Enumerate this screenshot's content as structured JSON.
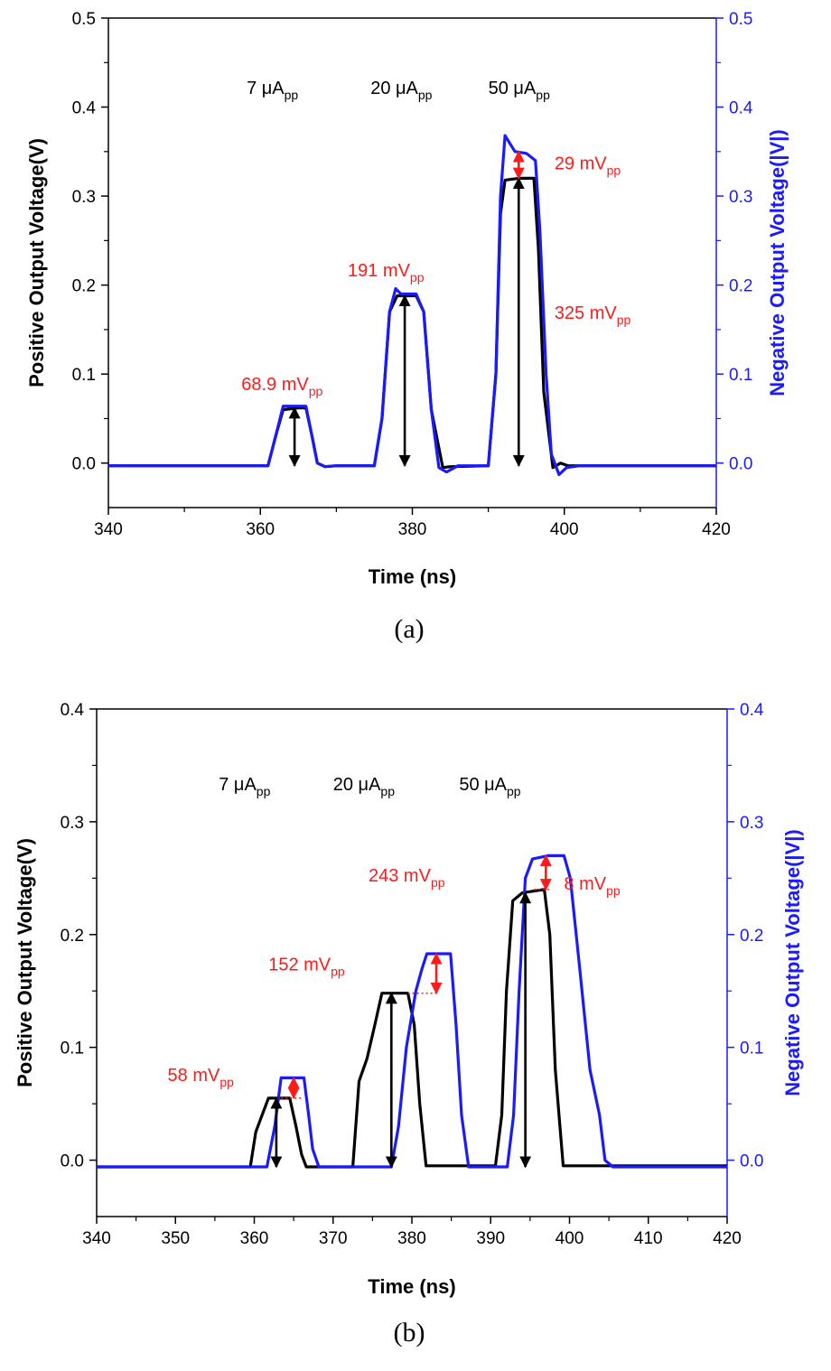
{
  "chart_data": [
    {
      "type": "line",
      "caption": "(a)",
      "xlabel": "Time (ns)",
      "ylabel_left": "Positive Output Voltage(V)",
      "ylabel_right": "Negative Output Voltage(|V|)",
      "xlim": [
        340,
        420
      ],
      "ylim": [
        -0.05,
        0.5
      ],
      "xticks": [
        340,
        360,
        380,
        400,
        420
      ],
      "xtick_labels": [
        "340",
        "360",
        "380",
        "400",
        "420"
      ],
      "yticks": [
        0.0,
        0.1,
        0.2,
        0.3,
        0.4,
        0.5
      ],
      "ytick_labels": [
        "0.0",
        "0.1",
        "0.2",
        "0.3",
        "0.4",
        "0.5"
      ],
      "colors": {
        "positive": "#000000",
        "negative": "#1a1aff",
        "annotation": "#ff1a1a"
      },
      "series": [
        {
          "axis": "left",
          "color": "#000000",
          "x": [
            340,
            361,
            362,
            363,
            365,
            366,
            366.8,
            367.5,
            368.5,
            370,
            375,
            376,
            377,
            378,
            380.5,
            381.5,
            382.5,
            384,
            385,
            390,
            391,
            391.6,
            392.2,
            394,
            396,
            396.6,
            397.3,
            398.5,
            399.5,
            400.5,
            402,
            420
          ],
          "y": [
            -0.003,
            -0.003,
            0.03,
            0.06,
            0.062,
            0.062,
            0.03,
            0.0,
            -0.004,
            -0.003,
            -0.003,
            0.05,
            0.17,
            0.188,
            0.188,
            0.17,
            0.06,
            -0.005,
            -0.004,
            -0.003,
            0.1,
            0.28,
            0.318,
            0.32,
            0.32,
            0.24,
            0.08,
            -0.005,
            0.0,
            -0.003,
            -0.003,
            -0.003
          ]
        },
        {
          "axis": "right",
          "color": "#1a1aff",
          "x": [
            340,
            361,
            362,
            363,
            365,
            366,
            366.8,
            367.5,
            368.5,
            370,
            375,
            376,
            377,
            377.8,
            378.5,
            380.5,
            381.5,
            382.5,
            383.5,
            384.5,
            386,
            390,
            391,
            391.6,
            392.2,
            393.5,
            395,
            396.2,
            396.8,
            397.6,
            398.3,
            399.3,
            400.3,
            402,
            420
          ],
          "y": [
            -0.003,
            -0.003,
            0.03,
            0.064,
            0.064,
            0.064,
            0.03,
            0.0,
            -0.004,
            -0.003,
            -0.003,
            0.05,
            0.17,
            0.196,
            0.19,
            0.19,
            0.17,
            0.06,
            -0.005,
            -0.01,
            -0.003,
            -0.003,
            0.1,
            0.3,
            0.368,
            0.35,
            0.348,
            0.34,
            0.26,
            0.1,
            0.01,
            -0.013,
            -0.005,
            -0.003,
            -0.003
          ]
        }
      ],
      "annotations": [
        {
          "text": "7 μA",
          "sub": "pp",
          "x": 358.2,
          "y": 0.415,
          "color": "#000000"
        },
        {
          "text": "20 μA",
          "sub": "pp",
          "x": 374.5,
          "y": 0.415,
          "color": "#000000"
        },
        {
          "text": "50 μA",
          "sub": "pp",
          "x": 390,
          "y": 0.415,
          "color": "#000000"
        },
        {
          "text": "68.9 mV",
          "sub": "pp",
          "x": 357.5,
          "y": 0.082,
          "color": "#ff1a1a"
        },
        {
          "text": "191 mV",
          "sub": "pp",
          "x": 371.5,
          "y": 0.21,
          "color": "#ff1a1a"
        },
        {
          "text": "29 mV",
          "sub": "pp",
          "x": 398.7,
          "y": 0.33,
          "color": "#ff1a1a"
        },
        {
          "text": "325 mV",
          "sub": "pp",
          "x": 398.7,
          "y": 0.162,
          "color": "#ff1a1a"
        }
      ],
      "arrows": [
        {
          "x": 364.5,
          "y1": 0.062,
          "y2": -0.003,
          "color": "#000000"
        },
        {
          "x": 379,
          "y1": 0.188,
          "y2": -0.003,
          "color": "#000000"
        },
        {
          "x": 394,
          "y1": 0.32,
          "y2": -0.003,
          "color": "#000000"
        },
        {
          "x": 394,
          "y1": 0.35,
          "y2": 0.32,
          "color": "#ff1a1a"
        }
      ]
    },
    {
      "type": "line",
      "caption": "(b)",
      "xlabel": "Time (ns)",
      "ylabel_left": "Positive Output Voltage(V)",
      "ylabel_right": "Negative Output Voltage(|V|)",
      "xlim": [
        340,
        420
      ],
      "ylim": [
        -0.05,
        0.4
      ],
      "xticks": [
        340,
        350,
        360,
        370,
        380,
        390,
        400,
        410,
        420
      ],
      "xtick_labels": [
        "340",
        "350",
        "360",
        "370",
        "380",
        "390",
        "400",
        "410",
        "420"
      ],
      "yticks": [
        0.0,
        0.1,
        0.2,
        0.3,
        0.4
      ],
      "ytick_labels": [
        "0.0",
        "0.1",
        "0.2",
        "0.3",
        "0.4"
      ],
      "colors": {
        "positive": "#000000",
        "negative": "#1a1aff",
        "annotation": "#ff1a1a"
      },
      "series": [
        {
          "axis": "left",
          "color": "#000000",
          "x": [
            340,
            359.5,
            360.2,
            361,
            361.8,
            364.5,
            365.3,
            366,
            366.6,
            370,
            372.5,
            373.3,
            374.3,
            375.3,
            376.2,
            379.5,
            380.3,
            381,
            381.8,
            382.6,
            390.6,
            391.4,
            392,
            392.8,
            394,
            396.8,
            397.5,
            398.2,
            399.2,
            400.5,
            420
          ],
          "y": [
            -0.006,
            -0.006,
            0.025,
            0.04,
            0.055,
            0.055,
            0.03,
            0.005,
            -0.006,
            -0.006,
            -0.006,
            0.07,
            0.09,
            0.12,
            0.148,
            0.148,
            0.12,
            0.05,
            -0.005,
            -0.005,
            -0.005,
            0.04,
            0.15,
            0.23,
            0.237,
            0.24,
            0.2,
            0.08,
            -0.005,
            -0.005,
            -0.005
          ]
        },
        {
          "axis": "right",
          "color": "#1a1aff",
          "x": [
            340,
            361.6,
            362.6,
            363.4,
            366.3,
            366.9,
            367.4,
            368.2,
            370,
            377.4,
            378.3,
            379.3,
            380.5,
            381.3,
            381.9,
            384.9,
            385.6,
            386.3,
            387.2,
            392.1,
            392.9,
            393.6,
            394.4,
            395.3,
            397.3,
            399.3,
            400.1,
            401.3,
            402.6,
            403.8,
            404.5,
            405.5,
            420
          ],
          "y": [
            -0.006,
            -0.006,
            0.03,
            0.073,
            0.073,
            0.04,
            0.01,
            -0.006,
            -0.006,
            -0.006,
            0.03,
            0.1,
            0.15,
            0.17,
            0.183,
            0.183,
            0.12,
            0.04,
            -0.006,
            -0.006,
            0.04,
            0.15,
            0.25,
            0.267,
            0.27,
            0.27,
            0.25,
            0.17,
            0.08,
            0.04,
            0.0,
            -0.006,
            -0.006
          ]
        }
      ],
      "annotations": [
        {
          "text": "7 μA",
          "sub": "pp",
          "x": 355.5,
          "y": 0.328,
          "color": "#000000"
        },
        {
          "text": "20 μA",
          "sub": "pp",
          "x": 370,
          "y": 0.328,
          "color": "#000000"
        },
        {
          "text": "50 μA",
          "sub": "pp",
          "x": 386,
          "y": 0.328,
          "color": "#000000"
        },
        {
          "text": "58 mV",
          "sub": "pp",
          "x": 349,
          "y": 0.07,
          "color": "#ff1a1a"
        },
        {
          "text": "152 mV",
          "sub": "pp",
          "x": 361.8,
          "y": 0.168,
          "color": "#ff1a1a"
        },
        {
          "text": "243 mV",
          "sub": "pp",
          "x": 374.5,
          "y": 0.247,
          "color": "#ff1a1a"
        },
        {
          "text": "8 mV",
          "sub": "pp",
          "x": 399.3,
          "y": 0.24,
          "color": "#ff1a1a"
        }
      ],
      "arrows": [
        {
          "x": 362.8,
          "y1": 0.055,
          "y2": -0.006,
          "color": "#000000"
        },
        {
          "x": 377.4,
          "y1": 0.148,
          "y2": -0.006,
          "color": "#000000"
        },
        {
          "x": 394.4,
          "y1": 0.237,
          "y2": -0.006,
          "color": "#000000"
        },
        {
          "x": 365,
          "y1": 0.073,
          "y2": 0.055,
          "color": "#ff1a1a"
        },
        {
          "x": 383.1,
          "y1": 0.183,
          "y2": 0.148,
          "color": "#ff1a1a"
        },
        {
          "x": 397,
          "y1": 0.27,
          "y2": 0.24,
          "color": "#ff1a1a"
        }
      ],
      "dotted_guides": [
        {
          "x1": 379.5,
          "x2": 383.1,
          "y": 0.148,
          "color": "#ff1a1a"
        },
        {
          "x1": 363.4,
          "x2": 366,
          "y": 0.055,
          "color": "#ff1a1a"
        },
        {
          "x1": 395.5,
          "x2": 397.8,
          "y": 0.24,
          "color": "#ff1a1a"
        }
      ]
    }
  ]
}
